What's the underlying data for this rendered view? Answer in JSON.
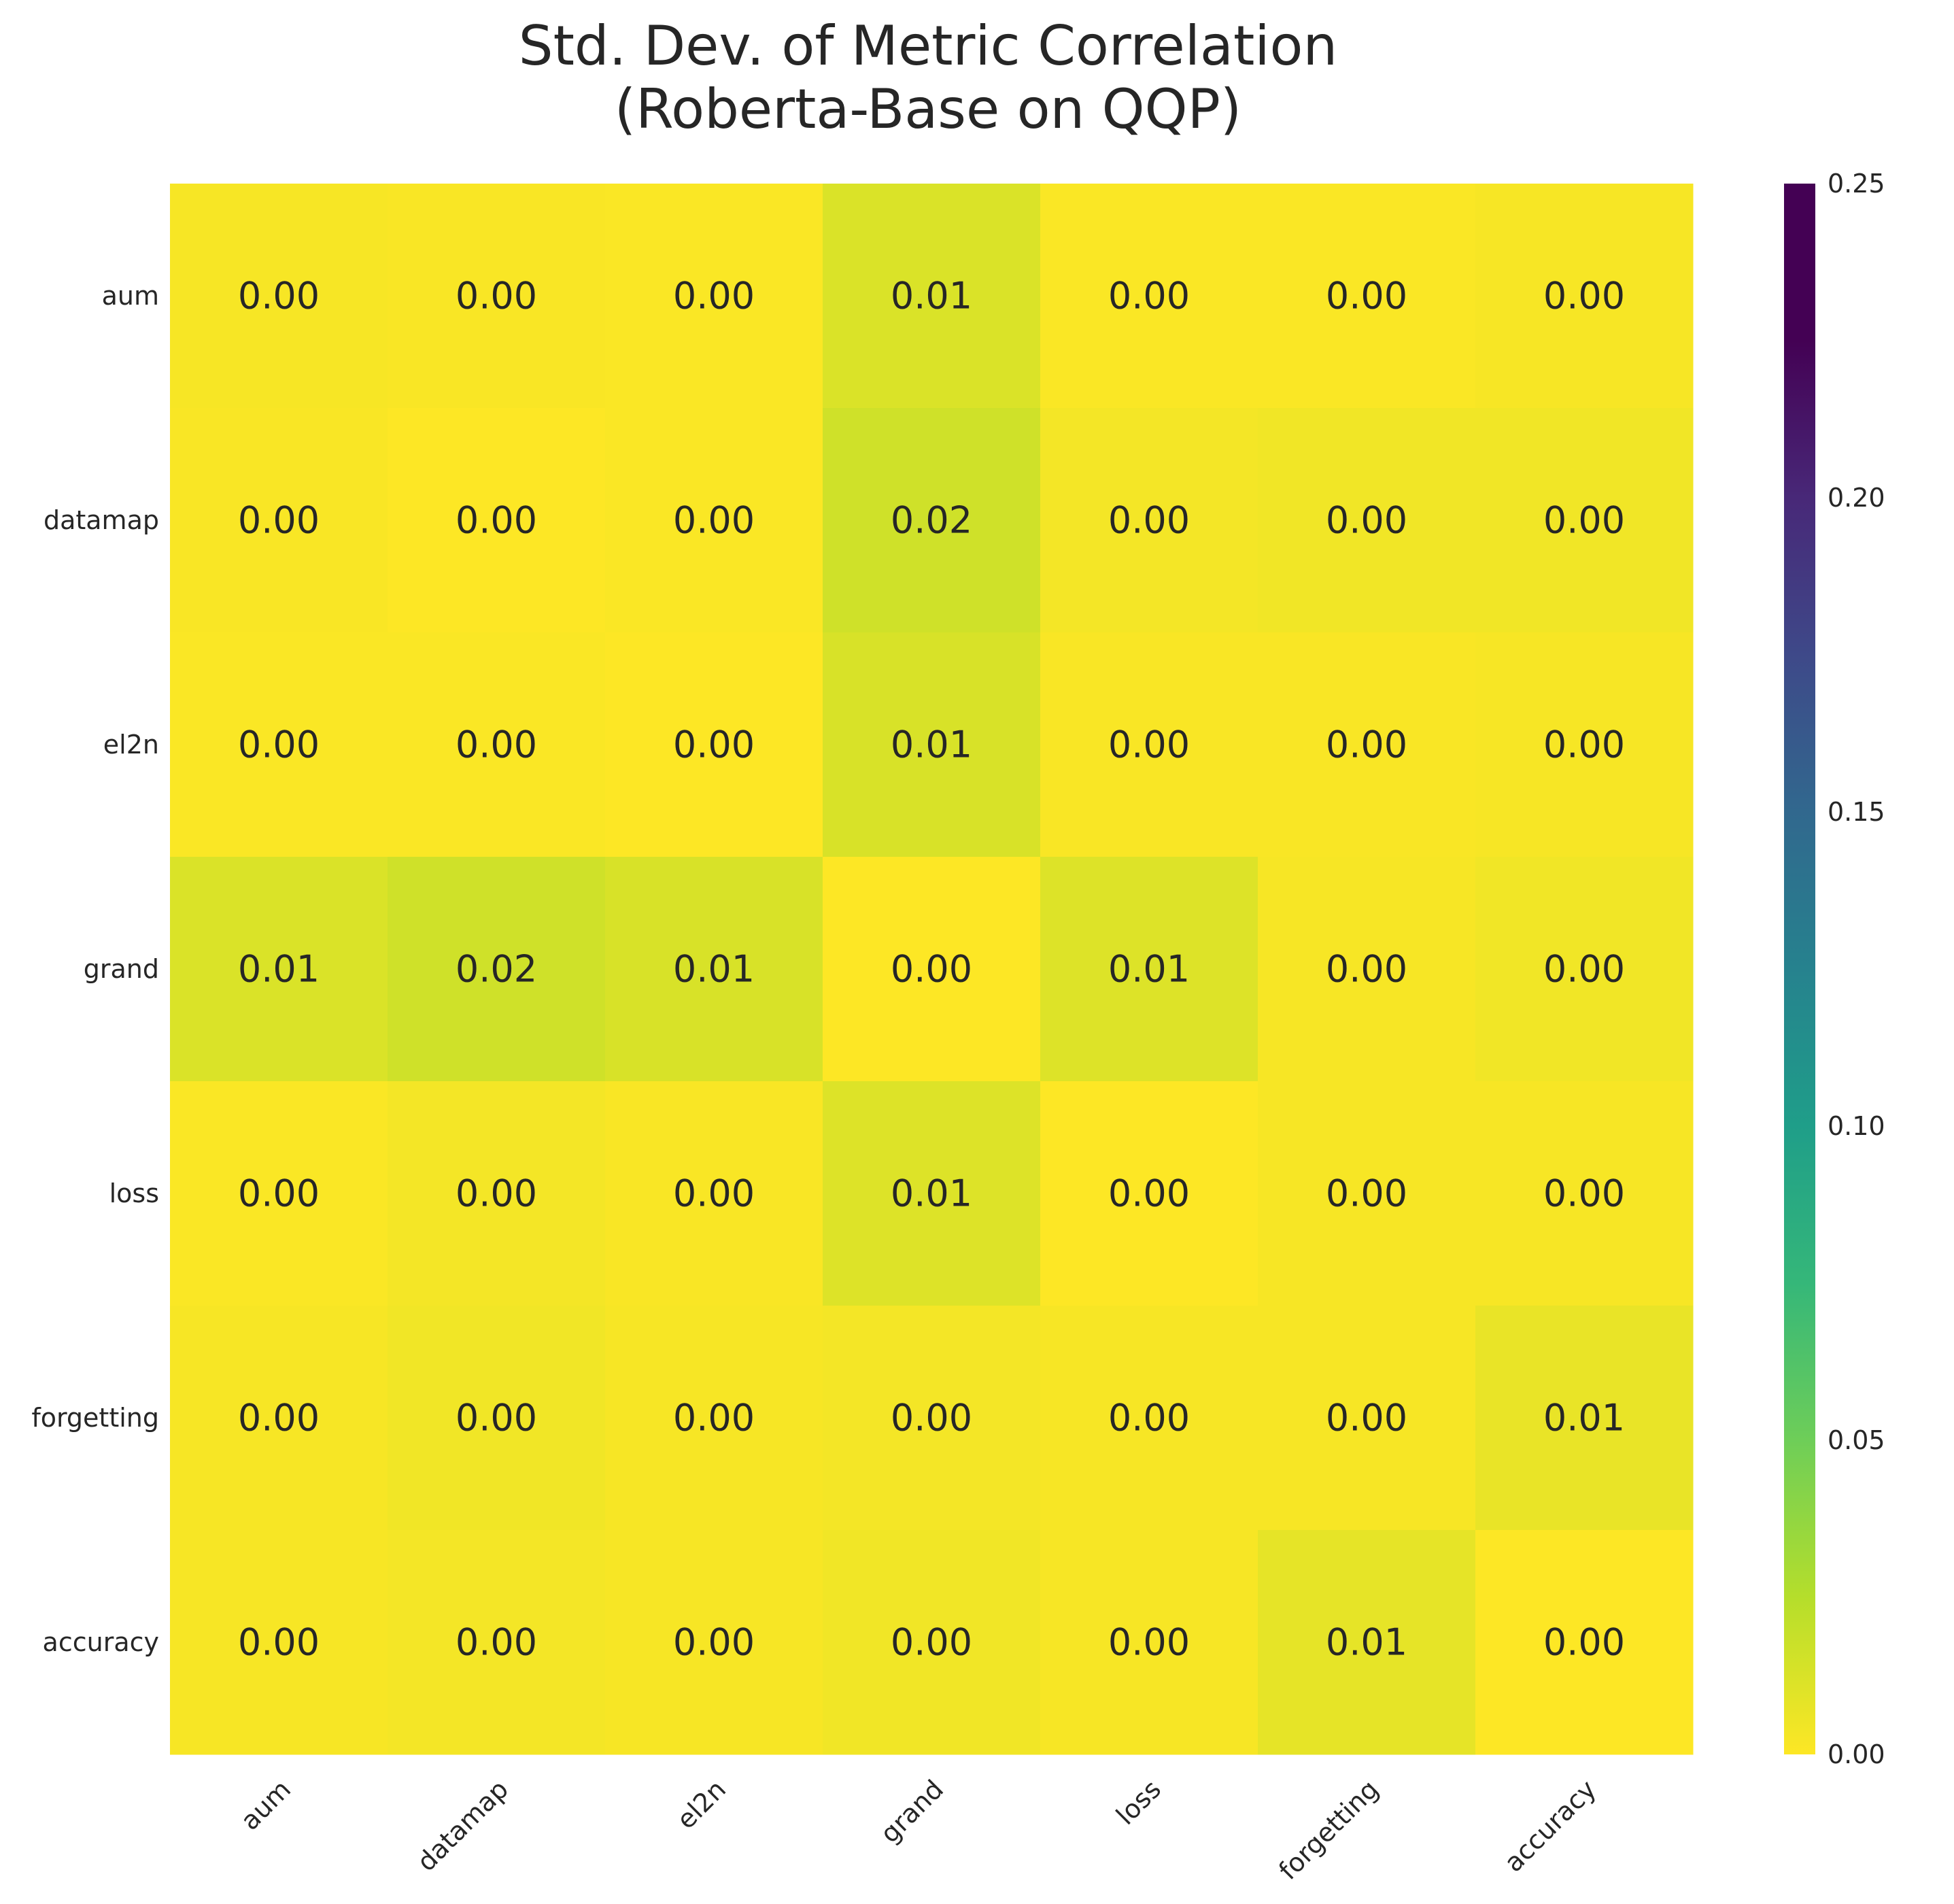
{
  "chart_data": {
    "type": "heatmap",
    "title": [
      "Std. Dev. of Metric Correlation",
      "(Roberta-Base on QQP)"
    ],
    "rows": [
      "aum",
      "datamap",
      "el2n",
      "grand",
      "loss",
      "forgetting",
      "accuracy"
    ],
    "columns": [
      "aum",
      "datamap",
      "el2n",
      "grand",
      "loss",
      "forgetting",
      "accuracy"
    ],
    "values": [
      [
        0.002,
        0.0015,
        0.0012,
        0.012,
        0.001,
        0.001,
        0.002
      ],
      [
        0.0015,
        0.0,
        0.0012,
        0.016,
        0.003,
        0.004,
        0.004
      ],
      [
        0.0012,
        0.0012,
        0.0,
        0.013,
        0.0015,
        0.0015,
        0.002
      ],
      [
        0.012,
        0.016,
        0.013,
        0.0,
        0.011,
        0.002,
        0.004
      ],
      [
        0.001,
        0.003,
        0.0015,
        0.011,
        0.0,
        0.002,
        0.002
      ],
      [
        0.002,
        0.004,
        0.002,
        0.003,
        0.002,
        0.002,
        0.007
      ],
      [
        0.002,
        0.003,
        0.002,
        0.004,
        0.002,
        0.008,
        0.0
      ]
    ],
    "labels": [
      [
        "0.00",
        "0.00",
        "0.00",
        "0.01",
        "0.00",
        "0.00",
        "0.00"
      ],
      [
        "0.00",
        "0.00",
        "0.00",
        "0.02",
        "0.00",
        "0.00",
        "0.00"
      ],
      [
        "0.00",
        "0.00",
        "0.00",
        "0.01",
        "0.00",
        "0.00",
        "0.00"
      ],
      [
        "0.01",
        "0.02",
        "0.01",
        "0.00",
        "0.01",
        "0.00",
        "0.00"
      ],
      [
        "0.00",
        "0.00",
        "0.00",
        "0.01",
        "0.00",
        "0.00",
        "0.00"
      ],
      [
        "0.00",
        "0.00",
        "0.00",
        "0.00",
        "0.00",
        "0.00",
        "0.01"
      ],
      [
        "0.00",
        "0.00",
        "0.00",
        "0.00",
        "0.00",
        "0.01",
        "0.00"
      ]
    ],
    "colormap": "viridis_r",
    "vmin": 0.0,
    "vmax": 0.25,
    "colorbar_ticks": [
      "0.00",
      "0.05",
      "0.10",
      "0.15",
      "0.20",
      "0.25"
    ]
  }
}
